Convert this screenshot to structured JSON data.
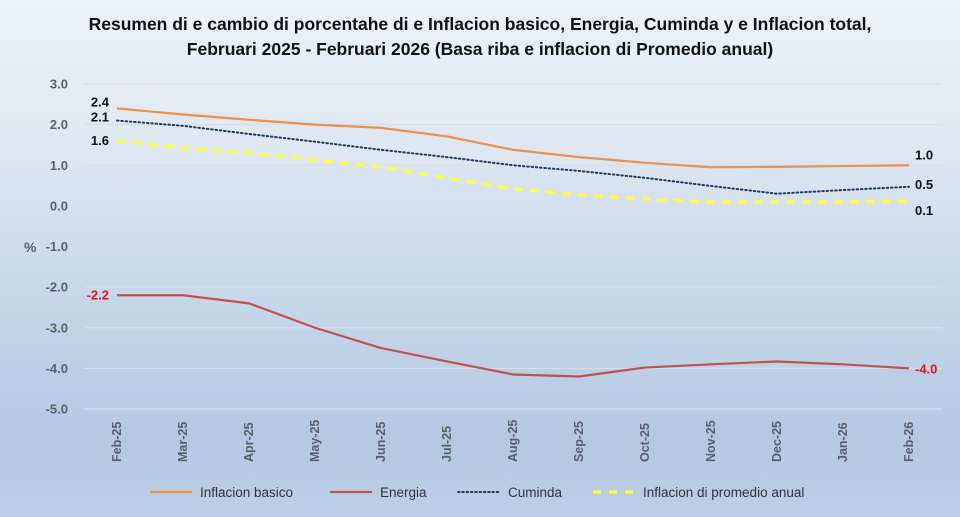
{
  "chart_data": {
    "type": "line",
    "title": "Resumen di e cambio di porcentahe di e Inflacion basico, Energia, Cuminda y e Inflacion total,  Februari 2025 - Februari 2026 (Basa riba e inflacion di Promedio anual)",
    "xlabel": "",
    "ylabel": "%",
    "ylim": [
      -5.0,
      3.0
    ],
    "yticks": [
      "3.0",
      "2.0",
      "1.0",
      "0.0",
      "-1.0",
      "-2.0",
      "-3.0",
      "-4.0",
      "-5.0"
    ],
    "ytick_values": [
      3,
      2,
      1,
      0,
      -1,
      -2,
      -3,
      -4,
      -5
    ],
    "grid": true,
    "legend_position": "bottom",
    "categories": [
      "Feb-25",
      "Mar-25",
      "Apr-25",
      "May-25",
      "Jun-25",
      "Jul-25",
      "Aug-25",
      "Sep-25",
      "Oct-25",
      "Nov-25",
      "Dec-25",
      "Jan-26",
      "Feb-26"
    ],
    "series": [
      {
        "name": "Inflacion basico",
        "color": "#ee8f4c",
        "style": "solid",
        "values": [
          2.4,
          2.25,
          2.12,
          2.0,
          1.92,
          1.71,
          1.38,
          1.2,
          1.06,
          0.95,
          0.96,
          0.98,
          1.0
        ],
        "start_label": "2.4",
        "end_label": "1.0"
      },
      {
        "name": "Energia",
        "color": "#c0504d",
        "style": "solid",
        "values": [
          -2.2,
          -2.2,
          -2.4,
          -3.0,
          -3.5,
          -3.83,
          -4.15,
          -4.2,
          -3.98,
          -3.9,
          -3.83,
          -3.9,
          -4.0
        ],
        "start_label": "-2.2",
        "end_label": "-4.0"
      },
      {
        "name": "Cuminda",
        "color": "#1f3864",
        "style": "dotted",
        "values": [
          2.1,
          1.97,
          1.77,
          1.58,
          1.38,
          1.2,
          1.0,
          0.86,
          0.69,
          0.49,
          0.3,
          0.39,
          0.47
        ],
        "start_label": "2.1",
        "end_label": "0.5"
      },
      {
        "name": "Inflacion di promedio anual",
        "color": "#ffff33",
        "style": "dashed",
        "values": [
          1.6,
          1.43,
          1.3,
          1.13,
          0.96,
          0.69,
          0.42,
          0.27,
          0.17,
          0.1,
          0.1,
          0.1,
          0.12
        ],
        "start_label": "1.6",
        "end_label": "0.1"
      }
    ]
  }
}
